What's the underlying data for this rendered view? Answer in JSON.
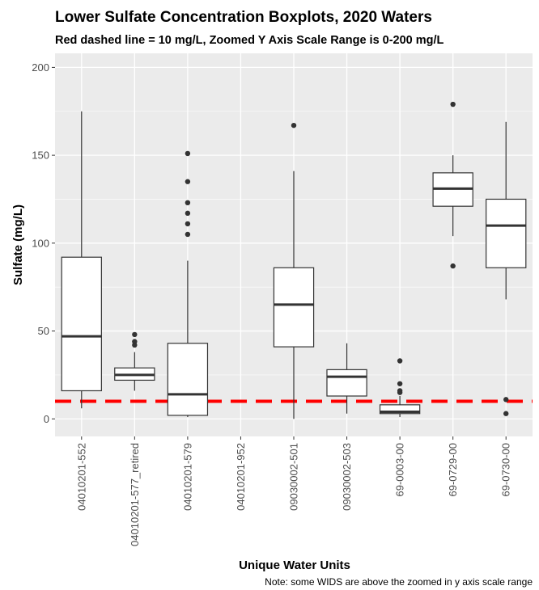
{
  "chart_data": {
    "type": "boxplot",
    "title": "Lower Sulfate Concentration Boxplots, 2020 Waters",
    "subtitle": "Red dashed line = 10 mg/L, Zoomed Y Axis Scale Range is 0-200 mg/L",
    "xlabel": "Unique Water Units",
    "ylabel": "Sulfate (mg/L)",
    "caption": "Note: some WIDS are above the zoomed in y axis scale range",
    "ylim": [
      -10,
      208
    ],
    "yticks": [
      0,
      50,
      100,
      150,
      200
    ],
    "grid": true,
    "reference_line": {
      "y": 10,
      "color": "#ff0000",
      "style": "dashed"
    },
    "categories": [
      "04010201-552",
      "04010201-577_retired",
      "04010201-579",
      "04010201-952",
      "09030002-501",
      "09030002-503",
      "69-0003-00",
      "69-0729-00",
      "69-0730-00"
    ],
    "boxes": [
      {
        "category": "04010201-552",
        "min": 6,
        "q1": 16,
        "median": 47,
        "q3": 92,
        "max": 175,
        "outliers": []
      },
      {
        "category": "04010201-577_retired",
        "min": 16,
        "q1": 22,
        "median": 25,
        "q3": 29,
        "max": 38,
        "outliers": [
          42,
          44,
          48
        ]
      },
      {
        "category": "04010201-579",
        "min": 1,
        "q1": 2,
        "median": 14,
        "q3": 43,
        "max": 90,
        "outliers": [
          105,
          111,
          117,
          123,
          135,
          151
        ]
      },
      {
        "category": "04010201-952",
        "min": null,
        "q1": null,
        "median": null,
        "q3": null,
        "max": null,
        "outliers": []
      },
      {
        "category": "09030002-501",
        "min": 0,
        "q1": 41,
        "median": 65,
        "q3": 86,
        "max": 141,
        "outliers": [
          167
        ]
      },
      {
        "category": "09030002-503",
        "min": 3,
        "q1": 13,
        "median": 24,
        "q3": 28,
        "max": 43,
        "outliers": []
      },
      {
        "category": "69-0003-00",
        "min": 1,
        "q1": 3,
        "median": 4,
        "q3": 8,
        "max": 13,
        "outliers": [
          15,
          16,
          20,
          33
        ]
      },
      {
        "category": "69-0729-00",
        "min": 104,
        "q1": 121,
        "median": 131,
        "q3": 140,
        "max": 150,
        "outliers": [
          87,
          179
        ]
      },
      {
        "category": "69-0730-00",
        "min": 68,
        "q1": 86,
        "median": 110,
        "q3": 125,
        "max": 169,
        "outliers": [
          3,
          11
        ]
      }
    ]
  }
}
